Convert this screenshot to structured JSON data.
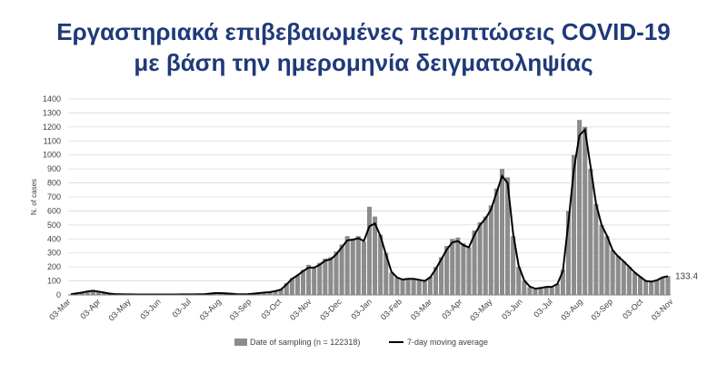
{
  "header": {
    "title_line1": "Εργαστηριακά επιβεβαιωμένες περιπτώσεις COVID-19",
    "title_line2": "με βάση την ημερομηνία δειγματοληψίας"
  },
  "colors": {
    "title": "#1f3a7a",
    "bars": "#8c8c8c",
    "line": "#000000",
    "grid": "#d9d9d9"
  },
  "chart_data": {
    "type": "bar",
    "ylabel": "N. of cases",
    "ylim": [
      0,
      1400
    ],
    "yticks": [
      0,
      100,
      200,
      300,
      400,
      500,
      600,
      700,
      800,
      900,
      1000,
      1100,
      1200,
      1300,
      1400
    ],
    "grid": true,
    "legend_position": "bottom",
    "xtick_labels": [
      "03-Mar",
      "03-Apr",
      "03-May",
      "03-Jun",
      "03-Jul",
      "03-Aug",
      "03-Sep",
      "03-Oct",
      "03-Nov",
      "03-Dec",
      "03-Jan",
      "03-Feb",
      "03-Mar",
      "03-Apr",
      "03-May",
      "03-Jun",
      "03-Jul",
      "03-Aug",
      "03-Sep",
      "03-Oct",
      "03-Nov"
    ],
    "series": [
      {
        "name": "Date of sampling (n = 122318)",
        "kind": "bar",
        "note": "daily values sampled every 7 days (approximate, read from chart)",
        "values": [
          5,
          12,
          18,
          28,
          35,
          25,
          18,
          10,
          6,
          5,
          4,
          4,
          3,
          3,
          3,
          3,
          3,
          3,
          3,
          3,
          4,
          4,
          4,
          5,
          5,
          10,
          15,
          14,
          12,
          10,
          6,
          5,
          6,
          10,
          14,
          18,
          20,
          30,
          40,
          85,
          120,
          140,
          180,
          215,
          200,
          230,
          260,
          270,
          310,
          360,
          420,
          400,
          420,
          380,
          630,
          560,
          430,
          300,
          160,
          125,
          110,
          120,
          120,
          110,
          100,
          130,
          200,
          270,
          350,
          400,
          410,
          370,
          340,
          460,
          520,
          560,
          640,
          760,
          900,
          840,
          420,
          200,
          100,
          55,
          40,
          50,
          60,
          55,
          80,
          180,
          600,
          1000,
          1250,
          1200,
          900,
          650,
          500,
          420,
          320,
          280,
          240,
          200,
          160,
          130,
          100,
          95,
          105,
          125,
          135
        ]
      },
      {
        "name": "7-day moving average",
        "kind": "line",
        "values": [
          5,
          11,
          17,
          25,
          30,
          24,
          17,
          10,
          6,
          5,
          4,
          4,
          3,
          3,
          3,
          3,
          3,
          3,
          3,
          3,
          4,
          4,
          4,
          5,
          5,
          9,
          13,
          13,
          11,
          9,
          6,
          5,
          6,
          9,
          13,
          17,
          20,
          28,
          38,
          75,
          115,
          140,
          170,
          195,
          195,
          215,
          245,
          255,
          290,
          340,
          390,
          395,
          405,
          385,
          490,
          510,
          420,
          290,
          165,
          125,
          110,
          115,
          115,
          108,
          100,
          125,
          185,
          255,
          325,
          375,
          385,
          355,
          340,
          430,
          500,
          545,
          610,
          730,
          850,
          800,
          440,
          210,
          105,
          60,
          45,
          50,
          58,
          58,
          78,
          170,
          520,
          900,
          1140,
          1180,
          920,
          650,
          500,
          420,
          320,
          275,
          240,
          200,
          160,
          130,
          100,
          95,
          105,
          125,
          133.4
        ]
      }
    ],
    "annotations": [
      {
        "text": "133.4"
      }
    ]
  }
}
